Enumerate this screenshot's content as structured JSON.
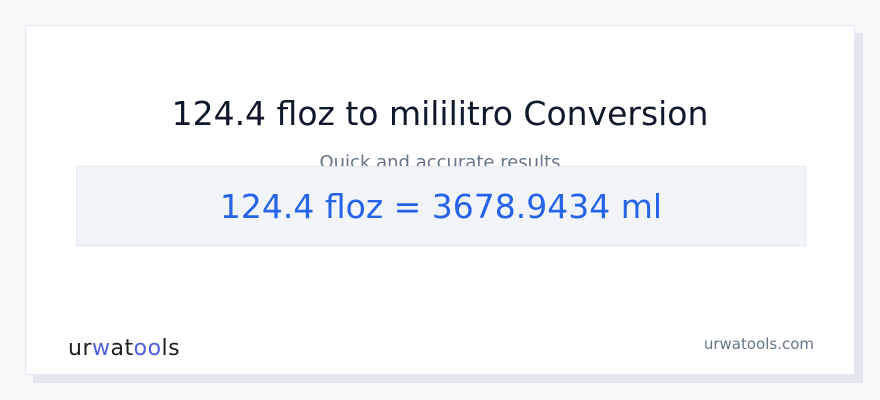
{
  "title": "124.4 floz to mililitro Conversion",
  "subtitle": "Quick and accurate results",
  "result": "124.4 floz = 3678.9434 ml",
  "footer": {
    "logo_text": "urwatools",
    "site": "urwatools.com"
  },
  "colors": {
    "accent": "#2563eb",
    "logo_accent": "#4f5fe0",
    "background": "#f8fafc"
  }
}
